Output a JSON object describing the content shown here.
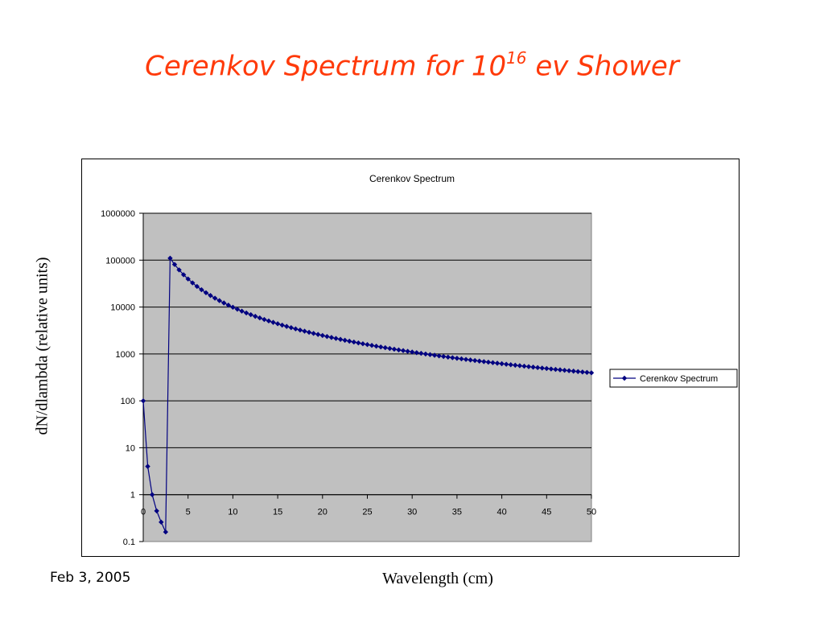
{
  "slide": {
    "title_main": "Cerenkov Spectrum for 10",
    "title_sup": "16",
    "title_tail": " ev Shower",
    "date": "Feb 3, 2005"
  },
  "chart_data": {
    "type": "line",
    "title": "Cerenkov Spectrum",
    "xlabel": "Wavelength (cm)",
    "ylabel": "dN/dlambda  (relative units)",
    "y_scale": "log",
    "xlim": [
      0,
      50
    ],
    "ylim": [
      0.1,
      1000000
    ],
    "x_ticks": [
      "0",
      "5",
      "10",
      "15",
      "20",
      "25",
      "30",
      "35",
      "40",
      "45",
      "50"
    ],
    "y_ticks": [
      "0.1",
      "1",
      "10",
      "100",
      "1000",
      "10000",
      "100000",
      "1000000"
    ],
    "grid": true,
    "legend": "right",
    "plot_bg": "#c0c0c0",
    "series_color": "#000080",
    "series": [
      {
        "name": "Cerenkov Spectrum",
        "marker": "diamond",
        "points": [
          [
            0,
            100
          ],
          [
            0.5,
            4
          ],
          [
            1,
            1
          ],
          [
            1.5,
            0.45
          ],
          [
            2,
            0.26
          ],
          [
            2.5,
            0.16
          ],
          [
            3,
            110000
          ]
        ]
      }
    ]
  }
}
